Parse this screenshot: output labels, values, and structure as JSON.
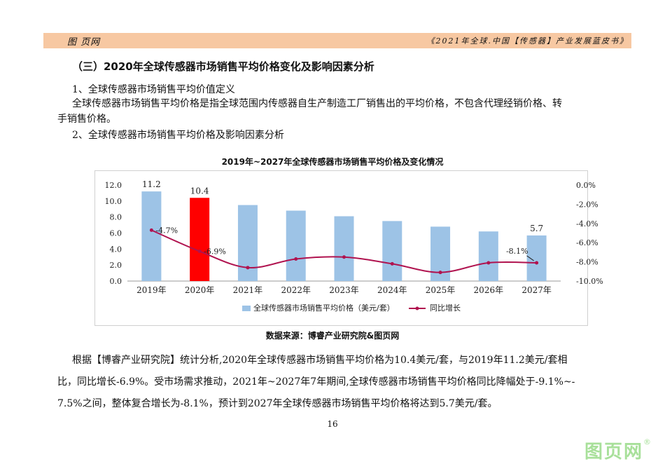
{
  "header": {
    "left": "图 页网",
    "right": "《2021年全球.中国【传感器】产业发展蓝皮书》"
  },
  "body": {
    "section_heading": "（三）2020年全球传感器市场销售平均价格变化及影响因素分析",
    "sub1": "1、全球传感器市场销售平均价值定义",
    "p1_line1": "全球传感器市场销售平均价格是指全球范围内传感器自生产制造工厂销售出的平均价格，不包含代理经销价格、转",
    "p1_line2": "手销售价格。",
    "sub2": "2、全球传感器市场销售平均价格及影响因素分析",
    "p2_line1": "根据【博睿产业研究院】统计分析,2020年全球传感器市场销售平均价格为10.4美元/套，与2019年11.2美元/套相",
    "p2_line2": "比，同比增长-6.9%。受市场需求推动，2021年~2027年7年期间,全球传感器市场销售平均价格同比降幅处于-9.1%~-",
    "p2_line3": "7.5%之间，整体复合增长为-8.1%，预计到2027年全球传感器市场销售平均价格将达到5.7美元/套。",
    "page_number": "16"
  },
  "chart_title": "2019年~2027年全球传感器市场销售平均价格及变化情况",
  "source": "数据来源：博睿产业研究院&图页网",
  "logo": {
    "text": "图页网",
    "mark": "®"
  },
  "colors": {
    "bar": "#9dc3e6",
    "bar_highlight": "#ff0000",
    "line": "#b0134f"
  },
  "chart_data": {
    "type": "bar",
    "categories": [
      "2019年",
      "2020年",
      "2021年",
      "2022年",
      "2023年",
      "2024年",
      "2025年",
      "2026年",
      "2027年"
    ],
    "series": [
      {
        "name": "全球传感器市场销售平均价格（美元/套）",
        "axis": "left",
        "values": [
          11.2,
          10.4,
          9.5,
          8.8,
          8.1,
          7.5,
          6.8,
          6.2,
          5.7
        ]
      },
      {
        "name": "同比增长",
        "axis": "right",
        "type": "line",
        "values": [
          -4.7,
          -6.9,
          -8.6,
          -7.7,
          -7.5,
          -8.2,
          -9.1,
          -8.1,
          -8.1
        ]
      }
    ],
    "highlight_index": 1,
    "bar_labels": [
      {
        "index": 0,
        "text": "11.2"
      },
      {
        "index": 1,
        "text": "10.4"
      },
      {
        "index": 8,
        "text": "5.7"
      }
    ],
    "line_labels": [
      {
        "index": 0,
        "text": "-4.7%"
      },
      {
        "index": 1,
        "text": "-6.9%"
      },
      {
        "index": 8,
        "text": "-8.1%"
      }
    ],
    "y_left": {
      "ticks": [
        "0.0",
        "2.0",
        "4.0",
        "6.0",
        "8.0",
        "10.0",
        "12.0"
      ],
      "range": [
        0,
        12
      ]
    },
    "y_right": {
      "ticks": [
        "-10.0%",
        "-8.0%",
        "-6.0%",
        "-4.0%",
        "-2.0%",
        "0.0%"
      ],
      "range": [
        -10,
        0
      ]
    },
    "legend": [
      "全球传感器市场销售平均价格（美元/套）",
      "同比增长"
    ],
    "legend_position": "bottom"
  }
}
